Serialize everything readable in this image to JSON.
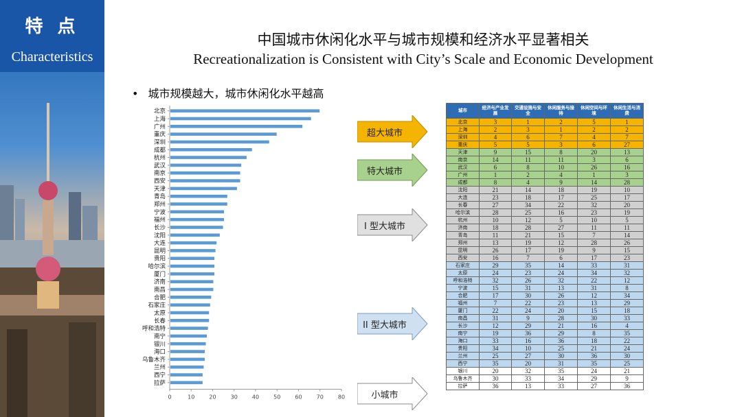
{
  "side": {
    "title_cn": "特 点",
    "title_en": "Characteristics"
  },
  "title_cn": "中国城市休闲化水平与城市规模和经济水平显著相关",
  "title_en": "Recreationalization is Consistent with City’s Scale and Economic Development",
  "bullet": "城市规模越大，城市休闲化水平越高",
  "colors": {
    "bar": "#5b9bd5",
    "super": "#f5b400",
    "mega": "#a9d18e",
    "large1": "#d0d0d0",
    "large2": "#bdd7ee",
    "small": "#ffffff",
    "header": "#2e6db4"
  },
  "chart_data": {
    "type": "bar",
    "orientation": "horizontal",
    "title": "",
    "xlabel": "",
    "ylabel": "",
    "xlim": [
      0,
      80
    ],
    "xticks": [
      0,
      10,
      20,
      30,
      40,
      50,
      60,
      70,
      80
    ],
    "grid": false,
    "categories": [
      "北京",
      "上海",
      "广州",
      "重庆",
      "深圳",
      "成都",
      "杭州",
      "武汉",
      "南京",
      "西安",
      "天津",
      "青岛",
      "郑州",
      "宁波",
      "福州",
      "长沙",
      "沈阳",
      "大连",
      "昆明",
      "贵阳",
      "哈尔滨",
      "厦门",
      "济南",
      "南昌",
      "合肥",
      "石家庄",
      "太原",
      "长春",
      "呼和浩特",
      "南宁",
      "银川",
      "海口",
      "乌鲁木齐",
      "兰州",
      "西宁",
      "拉萨"
    ],
    "values": [
      69.5,
      65.5,
      61.5,
      49.5,
      46,
      38,
      35.5,
      33,
      32.5,
      32.5,
      31,
      26.5,
      26.5,
      25,
      25,
      24.5,
      23,
      21.5,
      21,
      20.5,
      20.5,
      20.5,
      20,
      20,
      19,
      18.5,
      18,
      18,
      17.5,
      17,
      16.5,
      16,
      16,
      15.5,
      15,
      15
    ]
  },
  "arrows": [
    {
      "label": "超大城市"
    },
    {
      "label": "特大城市"
    },
    {
      "label": "I 型大城市"
    },
    {
      "label": "II 型大城市"
    },
    {
      "label": "小城市"
    }
  ],
  "table": {
    "headers": [
      "城市",
      "经济与产业发展",
      "交通设施与安全",
      "休闲服务与接待",
      "休闲空间与环境",
      "休闲生活与消费"
    ],
    "groups": [
      {
        "tier": "super",
        "rows": [
          [
            "北京",
            "3",
            "1",
            "2",
            "5",
            "1"
          ],
          [
            "上海",
            "2",
            "3",
            "1",
            "2",
            "2"
          ],
          [
            "深圳",
            "4",
            "6",
            "7",
            "4",
            "7"
          ],
          [
            "重庆",
            "5",
            "5",
            "3",
            "6",
            "27"
          ]
        ]
      },
      {
        "tier": "mega",
        "rows": [
          [
            "天津",
            "9",
            "15",
            "8",
            "20",
            "13"
          ],
          [
            "南京",
            "14",
            "11",
            "11",
            "3",
            "6"
          ],
          [
            "武汉",
            "6",
            "8",
            "10",
            "26",
            "16"
          ],
          [
            "广州",
            "1",
            "2",
            "4",
            "1",
            "3"
          ],
          [
            "成都",
            "8",
            "4",
            "9",
            "14",
            "28"
          ]
        ]
      },
      {
        "tier": "large1",
        "rows": [
          [
            "沈阳",
            "21",
            "14",
            "18",
            "19",
            "10"
          ],
          [
            "大连",
            "23",
            "18",
            "17",
            "25",
            "17"
          ],
          [
            "长春",
            "27",
            "34",
            "22",
            "32",
            "20"
          ],
          [
            "哈尔滨",
            "28",
            "25",
            "16",
            "23",
            "19"
          ],
          [
            "杭州",
            "10",
            "12",
            "5",
            "10",
            "5"
          ],
          [
            "济南",
            "18",
            "28",
            "27",
            "11",
            "11"
          ],
          [
            "青岛",
            "11",
            "21",
            "15",
            "7",
            "14"
          ],
          [
            "郑州",
            "13",
            "19",
            "12",
            "28",
            "26"
          ],
          [
            "昆明",
            "26",
            "17",
            "19",
            "9",
            "15"
          ],
          [
            "西安",
            "16",
            "7",
            "6",
            "17",
            "23"
          ]
        ]
      },
      {
        "tier": "large2",
        "rows": [
          [
            "石家庄",
            "29",
            "35",
            "14",
            "33",
            "31"
          ],
          [
            "太原",
            "24",
            "23",
            "24",
            "34",
            "32"
          ],
          [
            "呼和浩特",
            "32",
            "26",
            "32",
            "22",
            "12"
          ],
          [
            "宁波",
            "15",
            "31",
            "13",
            "31",
            "8"
          ],
          [
            "合肥",
            "17",
            "30",
            "26",
            "12",
            "34"
          ],
          [
            "福州",
            "7",
            "22",
            "23",
            "13",
            "29"
          ],
          [
            "厦门",
            "22",
            "24",
            "20",
            "15",
            "18"
          ],
          [
            "南昌",
            "31",
            "9",
            "28",
            "30",
            "33"
          ],
          [
            "长沙",
            "12",
            "29",
            "21",
            "16",
            "4"
          ],
          [
            "南宁",
            "19",
            "36",
            "29",
            "8",
            "35"
          ],
          [
            "海口",
            "33",
            "16",
            "36",
            "18",
            "22"
          ],
          [
            "贵阳",
            "34",
            "10",
            "25",
            "21",
            "24"
          ],
          [
            "兰州",
            "25",
            "27",
            "30",
            "36",
            "30"
          ],
          [
            "西宁",
            "35",
            "20",
            "31",
            "35",
            "25"
          ]
        ]
      },
      {
        "tier": "small",
        "rows": [
          [
            "银川",
            "20",
            "32",
            "35",
            "24",
            "21"
          ],
          [
            "乌鲁木齐",
            "30",
            "33",
            "34",
            "29",
            "9"
          ],
          [
            "拉萨",
            "36",
            "13",
            "33",
            "27",
            "36"
          ]
        ]
      }
    ]
  }
}
